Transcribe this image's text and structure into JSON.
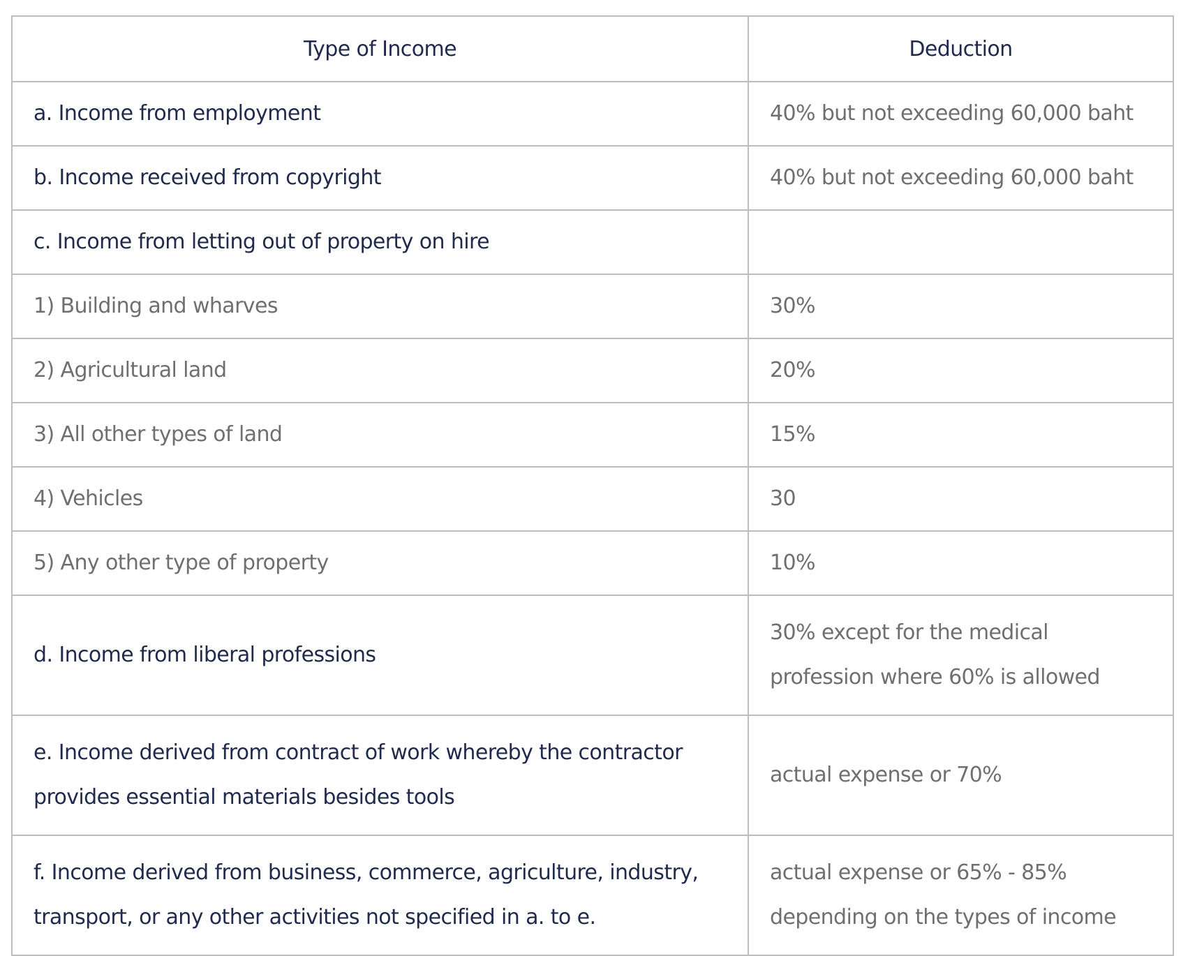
{
  "table": {
    "headers": [
      "Type of Income",
      "Deduction"
    ],
    "rows": [
      {
        "type": "a. Income from employment",
        "deduction": "40% but not exceeding 60,000 baht",
        "kind": "main"
      },
      {
        "type": "b. Income received from copyright",
        "deduction": "40% but not exceeding 60,000 baht",
        "kind": "main"
      },
      {
        "type": "c. Income from letting out of property on hire",
        "deduction": "",
        "kind": "main"
      },
      {
        "type": "1) Building and wharves",
        "deduction": "30%",
        "kind": "sub"
      },
      {
        "type": "2) Agricultural land",
        "deduction": "20%",
        "kind": "sub"
      },
      {
        "type": "3) All other types of land",
        "deduction": "15%",
        "kind": "sub"
      },
      {
        "type": "4) Vehicles",
        "deduction": "30",
        "kind": "sub"
      },
      {
        "type": "5) Any other type of property",
        "deduction": "10%",
        "kind": "sub"
      },
      {
        "type": "d. Income from liberal professions",
        "deduction": "30% except for the medical profession where 60% is allowed",
        "kind": "main"
      },
      {
        "type": "e. Income derived from contract of work whereby the contractor provides essential materials besides tools",
        "deduction": "actual expense or 70%",
        "kind": "main"
      },
      {
        "type": "f. Income derived from business, commerce, agriculture, industry, transport, or any other activities not specified in a. to e.",
        "deduction": "actual expense or 65% - 85% depending on the types of income",
        "kind": "main"
      }
    ]
  }
}
